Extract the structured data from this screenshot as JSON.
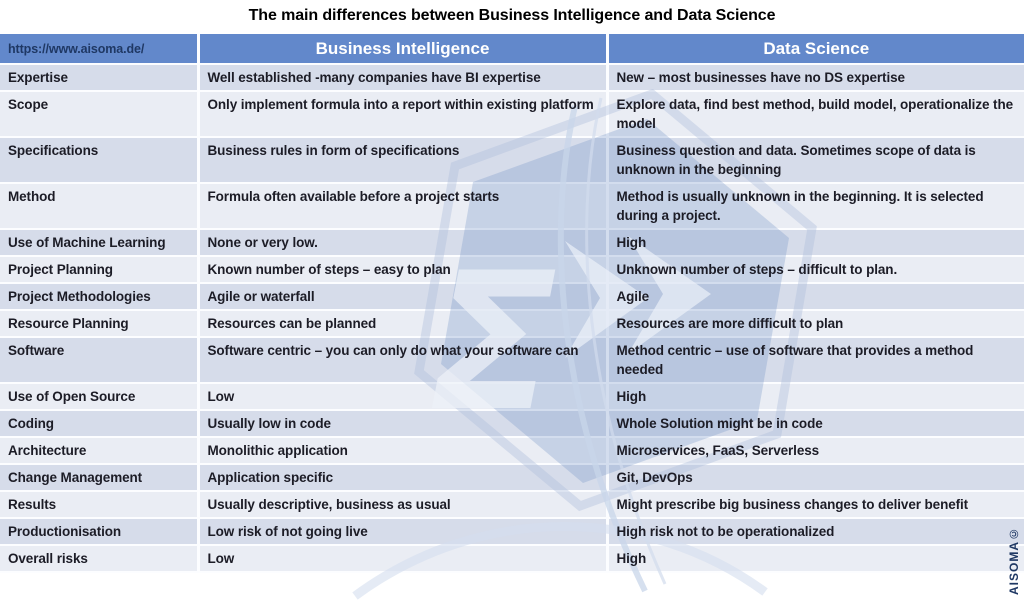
{
  "chart_data": {
    "type": "table",
    "title": "The main differences between Business Intelligence and Data Science",
    "columns": [
      "https://www.aisoma.de/",
      "Business Intelligence",
      "Data Science"
    ],
    "rows": [
      [
        "Expertise",
        "Well established -many companies have BI expertise",
        "New – most businesses have no DS expertise"
      ],
      [
        "Scope",
        "Only implement formula into a report within existing platform",
        "Explore data, find best method, build model, operationalize the model"
      ],
      [
        "Specifications",
        "Business rules in form of specifications",
        "Business question and data. Sometimes scope of data is unknown in the beginning"
      ],
      [
        "Method",
        "Formula often available before a project starts",
        "Method is usually unknown in the beginning. It is selected during a project."
      ],
      [
        "Use of Machine Learning",
        "None or very low.",
        "High"
      ],
      [
        "Project Planning",
        "Known number of steps – easy to plan",
        "Unknown number of steps – difficult to plan."
      ],
      [
        "Project Methodologies",
        "Agile or waterfall",
        "Agile"
      ],
      [
        "Resource Planning",
        "Resources can be planned",
        "Resources are more difficult to plan"
      ],
      [
        "Software",
        "Software centric – you can only do what your software can",
        "Method centric – use of software that provides a method needed"
      ],
      [
        "Use of Open Source",
        "Low",
        "High"
      ],
      [
        "Coding",
        "Usually low in code",
        "Whole Solution might be in code"
      ],
      [
        "Architecture",
        "Monolithic application",
        "Microservices, FaaS, Serverless"
      ],
      [
        "Change Management",
        "Application specific",
        "Git, DevOps"
      ],
      [
        "Results",
        "Usually descriptive, business as usual",
        "Might prescribe big business changes to deliver benefit"
      ],
      [
        "Productionisation",
        "Low risk of not going live",
        "High risk not to be operationalized"
      ],
      [
        "Overall risks",
        "Low",
        "High"
      ]
    ],
    "layout": {
      "double_line_rows": [
        1,
        2,
        3,
        8
      ],
      "row_striping": "odd rows darker"
    }
  },
  "branding": {
    "vertical_label": "AISOMA©",
    "watermark_name": "aisoma-sigma-logo"
  },
  "colors": {
    "header_bg": "#6288cb",
    "header_text": "#ffffff",
    "url_text": "#1f3864",
    "row_odd": "#d6dcea",
    "row_even": "#eaedf4",
    "body_text": "#1c1c26",
    "watermark_blue": "#7495c8"
  }
}
